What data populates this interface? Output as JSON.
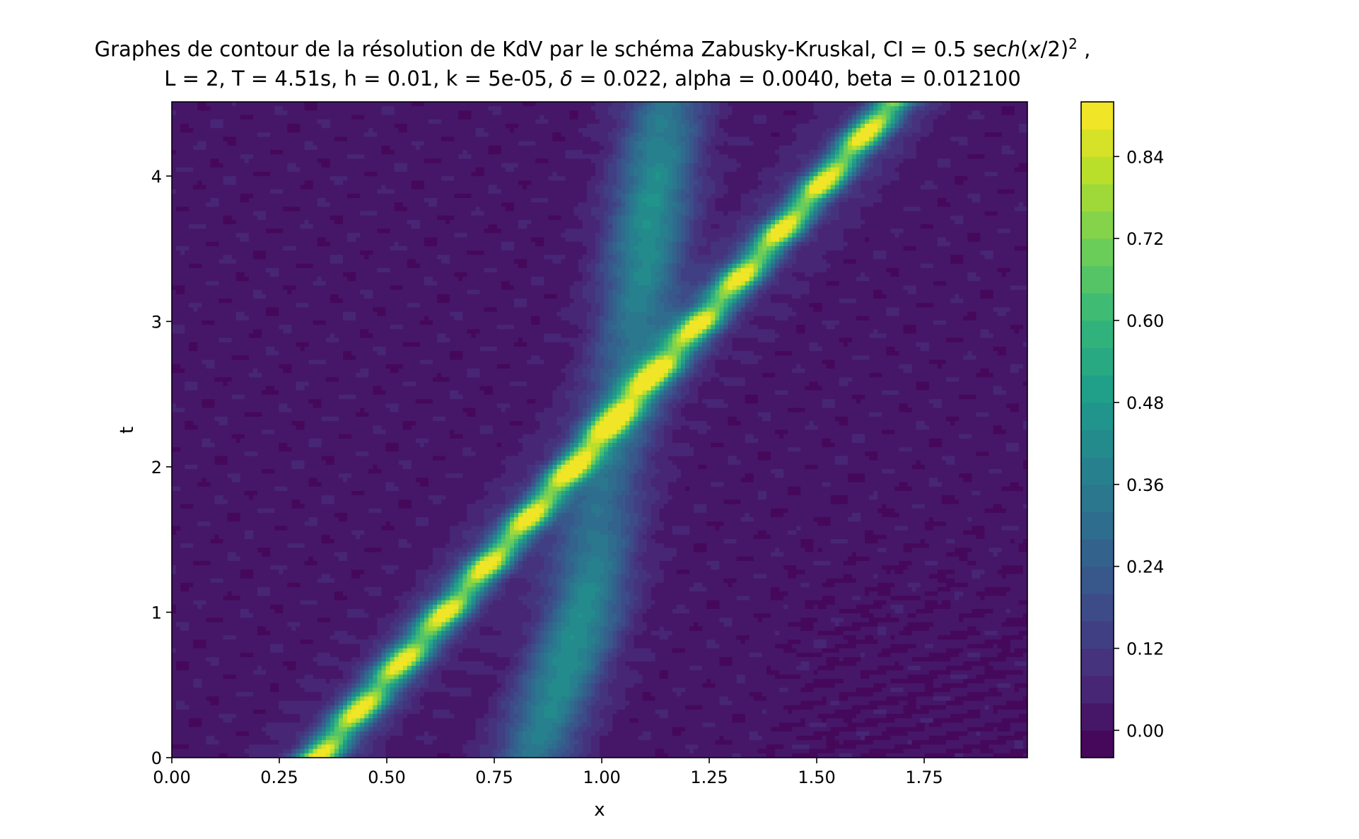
{
  "chart_data": {
    "type": "contourf",
    "title_line1_prefix": "Graphes de contour de la résolution de KdV par le schéma Zabusky-Kruskal, CI = 0.5 sec",
    "title_line1_italic": "h",
    "title_line1_middle": "(",
    "title_line1_x": "x",
    "title_line1_after": "/2)",
    "title_line1_exp": "2",
    "title_line1_suffix": " ,",
    "title_line2_prefix": "L = 2, T = 4.51s, h = 0.01, k = 5e-05, ",
    "title_line2_delta": "δ",
    "title_line2_suffix": " = 0.022,  alpha = 0.0040, beta = 0.012100",
    "xlabel": "x",
    "ylabel": "t",
    "xlim": [
      0,
      1.99
    ],
    "ylim": [
      0,
      4.51
    ],
    "x_ticks": [
      "0.00",
      "0.25",
      "0.50",
      "0.75",
      "1.00",
      "1.25",
      "1.50",
      "1.75"
    ],
    "x_tick_values": [
      0,
      0.25,
      0.5,
      0.75,
      1.0,
      1.25,
      1.5,
      1.75
    ],
    "y_ticks": [
      "0",
      "1",
      "2",
      "3",
      "4"
    ],
    "y_tick_values": [
      0,
      1,
      2,
      3,
      4
    ],
    "colorbar": {
      "range": [
        -0.04,
        0.92
      ],
      "tick_labels": [
        "0.00",
        "0.12",
        "0.24",
        "0.36",
        "0.48",
        "0.60",
        "0.72",
        "0.84"
      ],
      "tick_values": [
        0.0,
        0.12,
        0.24,
        0.36,
        0.48,
        0.6,
        0.72,
        0.84
      ],
      "colormap": "viridis",
      "levels": 24
    },
    "features": {
      "main_soliton": {
        "start": [
          0.34,
          0.0
        ],
        "end": [
          1.68,
          4.51
        ],
        "peak_value": 0.9,
        "oscillation_period_t": 0.33
      },
      "secondary_wave": {
        "path": [
          [
            0.84,
            0.0
          ],
          [
            0.96,
            1.0
          ],
          [
            1.02,
            2.0
          ],
          [
            1.08,
            3.0
          ],
          [
            1.15,
            4.51
          ]
        ],
        "peak_value": 0.5
      },
      "radiation_region": {
        "x_range": [
          1.35,
          1.99
        ],
        "t_range": [
          0.0,
          2.0
        ],
        "min_value": -0.03
      },
      "background_value": 0.02
    }
  }
}
